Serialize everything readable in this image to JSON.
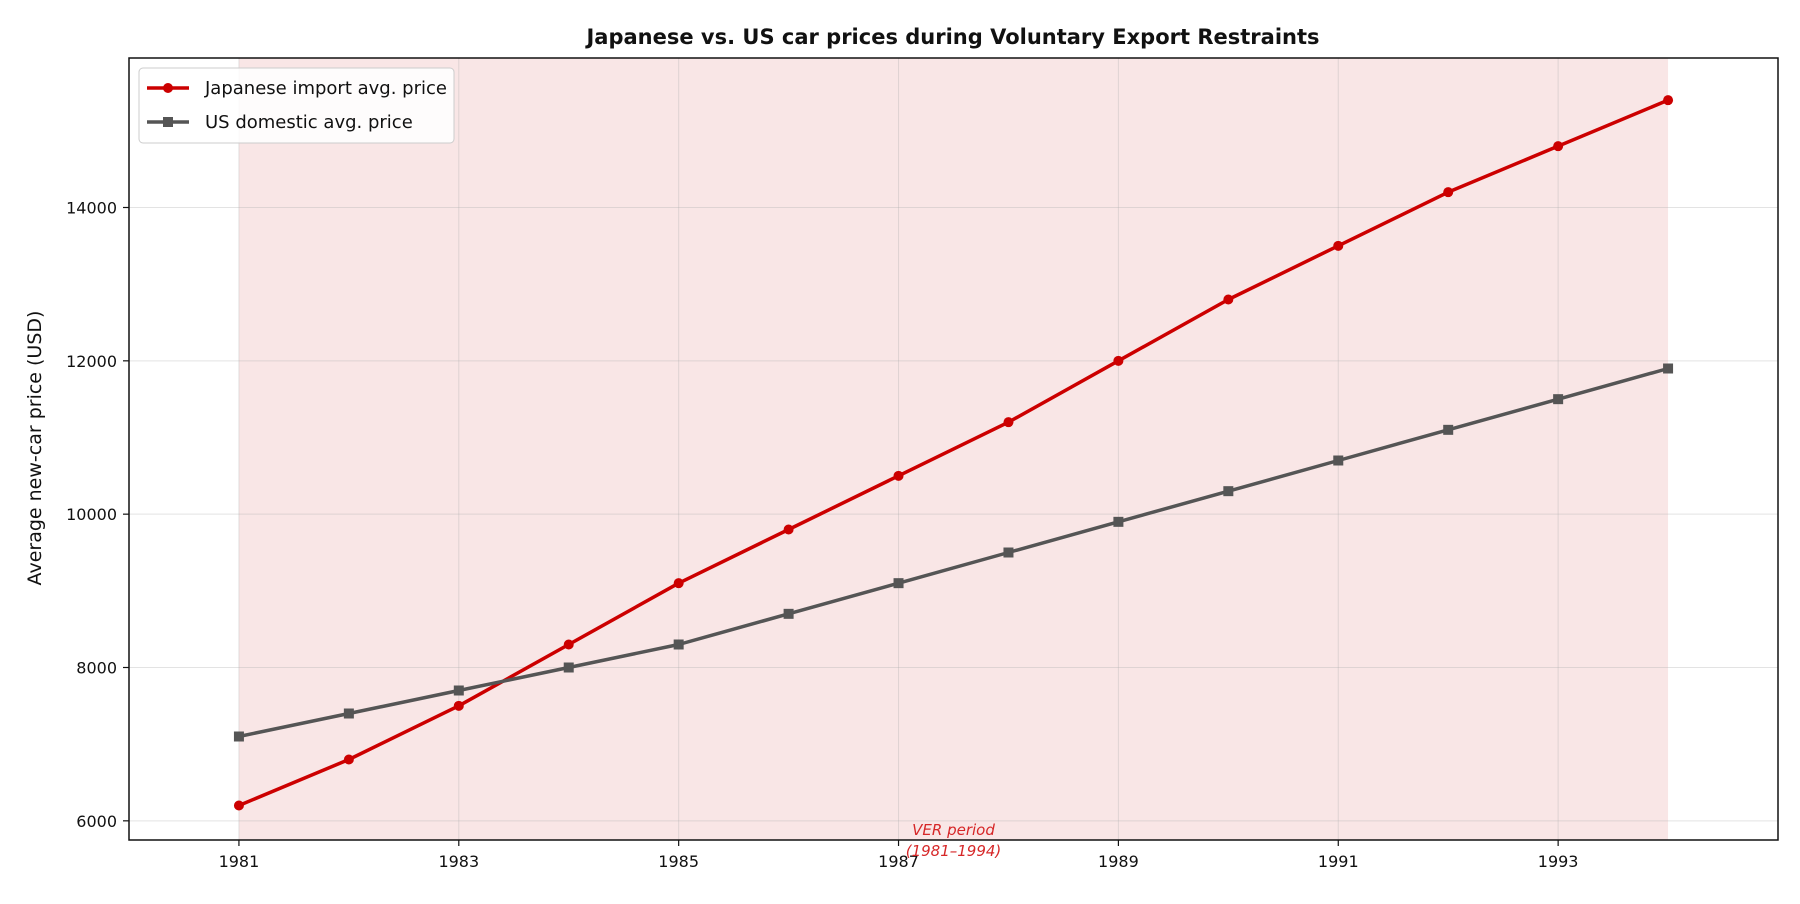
{
  "chart_data": {
    "type": "line",
    "title": "Japanese vs. US car prices during Voluntary Export Restraints",
    "xlabel": "",
    "ylabel": "Average new-car price (USD)",
    "x": [
      1981,
      1982,
      1983,
      1984,
      1985,
      1986,
      1987,
      1988,
      1989,
      1990,
      1991,
      1992,
      1993,
      1994
    ],
    "xlim": [
      1980,
      1995
    ],
    "ylim": [
      5750,
      15950
    ],
    "xticks": [
      "1981",
      "1983",
      "1985",
      "1987",
      "1989",
      "1991",
      "1993"
    ],
    "yticks": [
      "6000",
      "8000",
      "10000",
      "12000",
      "14000"
    ],
    "grid": true,
    "legend_position": "top-left",
    "series": [
      {
        "name": "Japanese import avg. price",
        "color": "#cc0000",
        "marker": "circle",
        "values": [
          6200,
          6800,
          7500,
          8300,
          9100,
          9800,
          10500,
          11200,
          12000,
          12800,
          13500,
          14200,
          14800,
          15400
        ]
      },
      {
        "name": "US domestic avg. price",
        "color": "#555555",
        "marker": "square",
        "values": [
          7100,
          7400,
          7700,
          8000,
          8300,
          8700,
          9100,
          9500,
          9900,
          10300,
          10700,
          11100,
          11500,
          11900
        ]
      }
    ],
    "shaded_region": {
      "x_start": 1981,
      "x_end": 1994,
      "color": "#f9e6e6",
      "label_line1": "VER period",
      "label_line2": "(1981–1994)"
    }
  }
}
